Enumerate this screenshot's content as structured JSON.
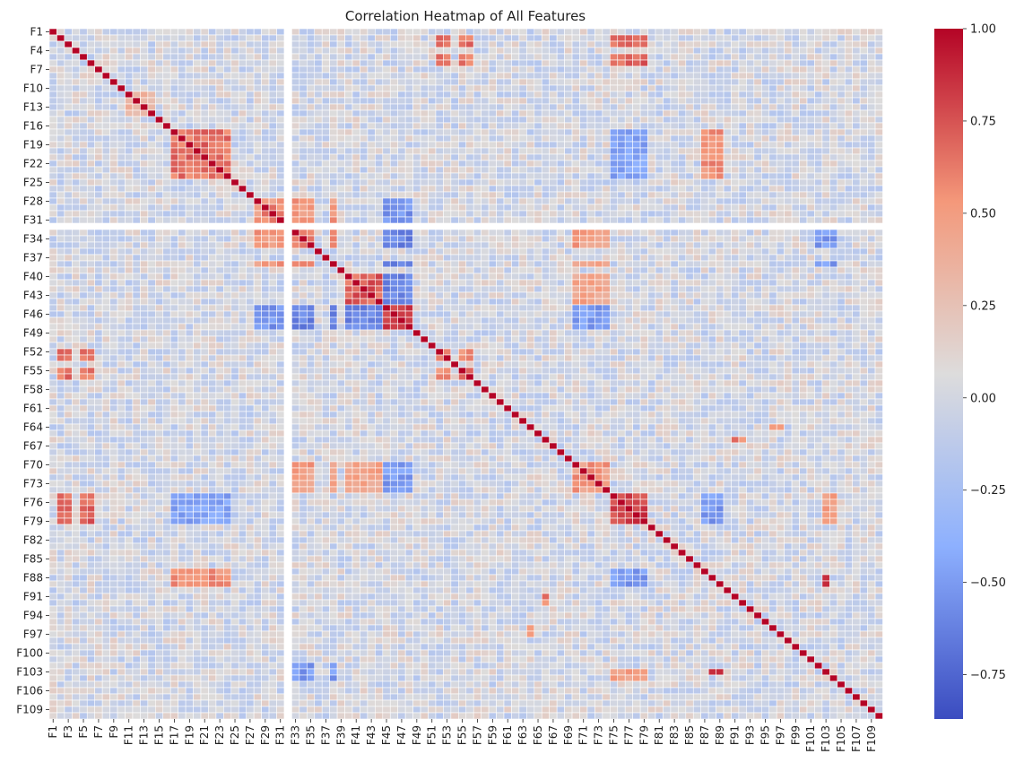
{
  "chart_data": {
    "type": "heatmap",
    "title": "Correlation Heatmap of All Features",
    "xlabel": "",
    "ylabel": "",
    "colormap": "coolwarm",
    "colors": {
      "low": "#3b4cc0",
      "mid": "#dddcdc",
      "high": "#b40426",
      "gridline": "#ffffff",
      "missing_feature": "F32"
    },
    "color_range": [
      -0.87,
      1.0
    ],
    "features": [
      "F1",
      "F2",
      "F3",
      "F4",
      "F5",
      "F6",
      "F7",
      "F8",
      "F9",
      "F10",
      "F11",
      "F12",
      "F13",
      "F14",
      "F15",
      "F16",
      "F17",
      "F18",
      "F19",
      "F20",
      "F21",
      "F22",
      "F23",
      "F24",
      "F25",
      "F26",
      "F27",
      "F28",
      "F29",
      "F30",
      "F31",
      "F32",
      "F33",
      "F34",
      "F35",
      "F36",
      "F37",
      "F38",
      "F39",
      "F40",
      "F41",
      "F42",
      "F43",
      "F44",
      "F45",
      "F46",
      "F47",
      "F48",
      "F49",
      "F50",
      "F51",
      "F52",
      "F53",
      "F54",
      "F55",
      "F56",
      "F57",
      "F58",
      "F59",
      "F60",
      "F61",
      "F62",
      "F63",
      "F64",
      "F65",
      "F66",
      "F67",
      "F68",
      "F69",
      "F70",
      "F71",
      "F72",
      "F73",
      "F74",
      "F75",
      "F76",
      "F77",
      "F78",
      "F79",
      "F80",
      "F81",
      "F82",
      "F83",
      "F84",
      "F85",
      "F86",
      "F87",
      "F88",
      "F89",
      "F90",
      "F91",
      "F92",
      "F93",
      "F94",
      "F95",
      "F96",
      "F97",
      "F98",
      "F99",
      "F100",
      "F101",
      "F102",
      "F103",
      "F104",
      "F105",
      "F106",
      "F107",
      "F108",
      "F109",
      "F110"
    ],
    "x_tick_labels": [
      "F1",
      "F3",
      "F5",
      "F7",
      "F9",
      "F11",
      "F13",
      "F15",
      "F17",
      "F19",
      "F21",
      "F23",
      "F25",
      "F27",
      "F29",
      "F31",
      "F33",
      "F35",
      "F37",
      "F39",
      "F41",
      "F43",
      "F45",
      "F47",
      "F49",
      "F51",
      "F53",
      "F55",
      "F57",
      "F59",
      "F61",
      "F63",
      "F65",
      "F67",
      "F69",
      "F71",
      "F73",
      "F75",
      "F77",
      "F79",
      "F81",
      "F83",
      "F85",
      "F87",
      "F89",
      "F91",
      "F93",
      "F95",
      "F97",
      "F99",
      "F101",
      "F103",
      "F105",
      "F107",
      "F109"
    ],
    "y_tick_labels": [
      "F1",
      "F4",
      "F7",
      "F10",
      "F13",
      "F16",
      "F19",
      "F22",
      "F25",
      "F28",
      "F31",
      "F34",
      "F37",
      "F40",
      "F43",
      "F46",
      "F49",
      "F52",
      "F55",
      "F58",
      "F61",
      "F64",
      "F67",
      "F70",
      "F73",
      "F76",
      "F79",
      "F82",
      "F85",
      "F88",
      "F91",
      "F94",
      "F97",
      "F100",
      "F103",
      "F106",
      "F109"
    ],
    "colorbar": {
      "ticks": [
        1.0,
        0.75,
        0.5,
        0.25,
        0.0,
        -0.25,
        -0.5,
        -0.75
      ],
      "tick_labels": [
        "1.00",
        "0.75",
        "0.50",
        "0.25",
        "0.00",
        "−0.25",
        "−0.50",
        "−0.75"
      ]
    },
    "blocks": [
      {
        "members": [
          "F17",
          "F18",
          "F19",
          "F20",
          "F21",
          "F22",
          "F23",
          "F24"
        ],
        "value": 0.65
      },
      {
        "members": [
          "F40",
          "F41",
          "F42",
          "F43",
          "F44"
        ],
        "value": 0.7
      },
      {
        "members": [
          "F45",
          "F46",
          "F47",
          "F48"
        ],
        "value": 0.85
      },
      {
        "members": [
          "F75",
          "F76",
          "F77",
          "F78",
          "F79"
        ],
        "value": 0.8
      },
      {
        "members": [
          "F33",
          "F34",
          "F35",
          "F38"
        ],
        "value": 0.7
      },
      {
        "members": [
          "F28",
          "F29",
          "F30",
          "F31"
        ],
        "value": 0.55
      },
      {
        "members": [
          "F11",
          "F12",
          "F13",
          "F14"
        ],
        "value": 0.4
      },
      {
        "members": [
          "F70",
          "F71",
          "F72",
          "F73",
          "F74"
        ],
        "value": 0.5
      },
      {
        "members": [
          "F52",
          "F53",
          "F55",
          "F56"
        ],
        "value": 0.6
      }
    ],
    "cross_blocks": [
      {
        "a": [
          "F40",
          "F41",
          "F42",
          "F43",
          "F44"
        ],
        "b": [
          "F45",
          "F46",
          "F47",
          "F48"
        ],
        "value": -0.6
      },
      {
        "a": [
          "F2",
          "F3",
          "F5",
          "F6"
        ],
        "b": [
          "F75",
          "F76",
          "F77",
          "F78",
          "F79"
        ],
        "value": 0.7
      },
      {
        "a": [
          "F2",
          "F3",
          "F5",
          "F6"
        ],
        "b": [
          "F52",
          "F53",
          "F55",
          "F56"
        ],
        "value": 0.65
      },
      {
        "a": [
          "F17",
          "F18",
          "F19",
          "F20",
          "F21",
          "F22",
          "F23",
          "F24"
        ],
        "b": [
          "F75",
          "F76",
          "F77",
          "F78",
          "F79"
        ],
        "value": -0.45
      },
      {
        "a": [
          "F17",
          "F18",
          "F19",
          "F20",
          "F21",
          "F22",
          "F23",
          "F24"
        ],
        "b": [
          "F87",
          "F88",
          "F89"
        ],
        "value": 0.55
      },
      {
        "a": [
          "F75",
          "F76",
          "F77",
          "F78",
          "F79"
        ],
        "b": [
          "F87",
          "F88",
          "F89"
        ],
        "value": -0.5
      },
      {
        "a": [
          "F33",
          "F34",
          "F35",
          "F38"
        ],
        "b": [
          "F70",
          "F71",
          "F72",
          "F73",
          "F74"
        ],
        "value": 0.5
      },
      {
        "a": [
          "F33",
          "F34",
          "F35",
          "F38"
        ],
        "b": [
          "F45",
          "F46",
          "F47",
          "F48"
        ],
        "value": -0.6
      },
      {
        "a": [
          "F28",
          "F29",
          "F30",
          "F31"
        ],
        "b": [
          "F45",
          "F46",
          "F47",
          "F48"
        ],
        "value": -0.55
      },
      {
        "a": [
          "F40",
          "F41",
          "F42",
          "F43",
          "F44"
        ],
        "b": [
          "F70",
          "F71",
          "F72",
          "F73",
          "F74"
        ],
        "value": 0.45
      },
      {
        "a": [
          "F45",
          "F46",
          "F47",
          "F48"
        ],
        "b": [
          "F70",
          "F71",
          "F72",
          "F73",
          "F74"
        ],
        "value": -0.5
      },
      {
        "a": [
          "F28",
          "F29",
          "F30",
          "F31"
        ],
        "b": [
          "F33",
          "F34",
          "F35",
          "F38"
        ],
        "value": 0.5
      },
      {
        "a": [
          "F102",
          "F103",
          "F104"
        ],
        "b": [
          "F33",
          "F34",
          "F35",
          "F38"
        ],
        "value": -0.5
      },
      {
        "a": [
          "F103",
          "F104"
        ],
        "b": [
          "F75",
          "F76",
          "F77",
          "F78",
          "F79"
        ],
        "value": 0.5
      },
      {
        "a": [
          "F88",
          "F89"
        ],
        "b": [
          "F103"
        ],
        "value": 0.85
      },
      {
        "a": [
          "F64"
        ],
        "b": [
          "F96",
          "F97"
        ],
        "value": 0.5
      },
      {
        "a": [
          "F66"
        ],
        "b": [
          "F91",
          "F92"
        ],
        "value": 0.6
      }
    ]
  }
}
